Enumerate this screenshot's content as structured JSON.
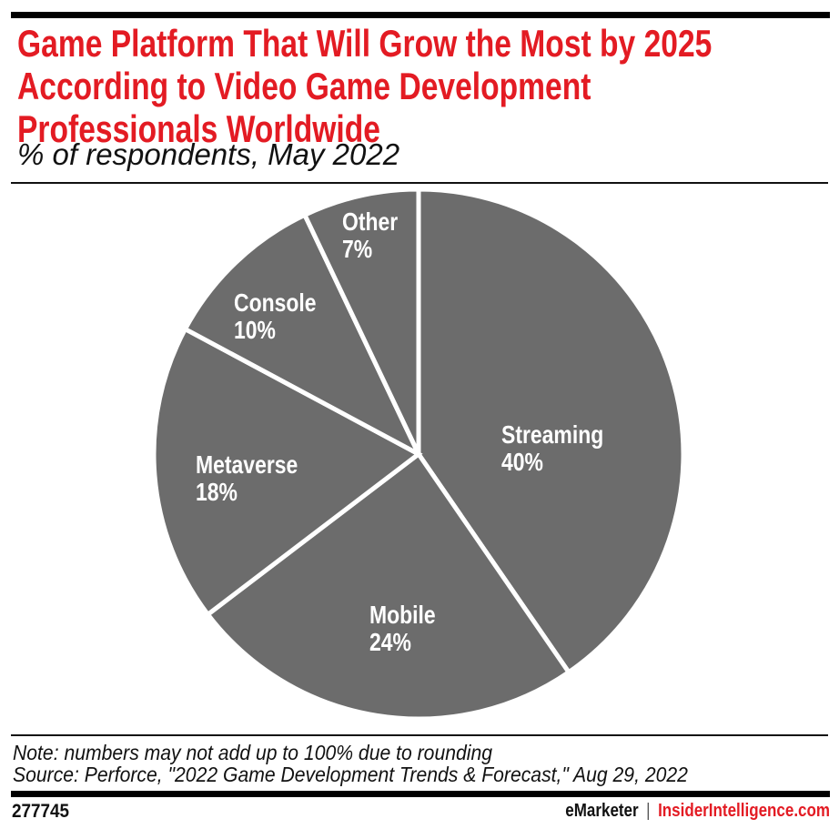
{
  "header": {
    "title_lines": [
      "Game Platform That Will Grow the Most by 2025",
      "According to Video Game Development",
      "Professionals Worldwide"
    ],
    "subtitle": "% of respondents, May 2022"
  },
  "chart_data": {
    "type": "pie",
    "title": "Game Platform That Will Grow the Most by 2025 According to Video Game Development Professionals Worldwide",
    "unit": "% of respondents",
    "date": "May 2022",
    "start_angle": "12 o'clock",
    "direction": "clockwise",
    "legend_position": "labels inside slices",
    "slices": [
      {
        "label": "Streaming",
        "value": 40,
        "display": "40%"
      },
      {
        "label": "Mobile",
        "value": 24,
        "display": "24%"
      },
      {
        "label": "Metaverse",
        "value": 18,
        "display": "18%"
      },
      {
        "label": "Console",
        "value": 10,
        "display": "10%"
      },
      {
        "label": "Other",
        "value": 7,
        "display": "7%"
      }
    ],
    "colors": {
      "slice_fill": "#6c6c6c",
      "divider": "#ffffff",
      "label_text": "#ffffff"
    }
  },
  "footer": {
    "note": "Note: numbers may not add up to 100% due to rounding",
    "source": "Source: Perforce, \"2022 Game Development Trends & Forecast,\" Aug 29, 2022",
    "chart_id": "277745",
    "brand_left": "eMarketer",
    "brand_separator": "|",
    "brand_right": "InsiderIntelligence.com"
  },
  "colors": {
    "accent_red": "#e31b23",
    "bar_black": "#000000"
  }
}
